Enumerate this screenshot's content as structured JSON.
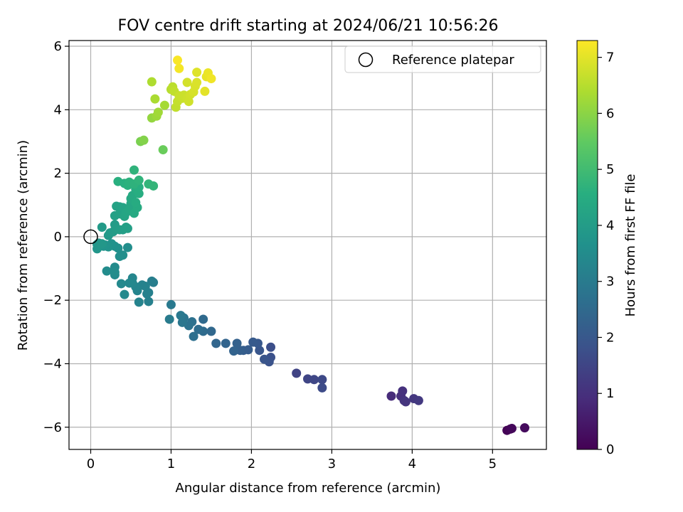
{
  "chart_data": {
    "type": "scatter",
    "title": "FOV centre drift starting at 2024/06/21 10:56:26",
    "xlabel": "Angular distance from reference (arcmin)",
    "ylabel": "Rotation from reference (arcmin)",
    "xlim": [
      -0.27,
      5.67
    ],
    "ylim": [
      -6.7,
      6.18
    ],
    "xticks": [
      0,
      1,
      2,
      3,
      4,
      5
    ],
    "yticks": [
      -6,
      -4,
      -2,
      0,
      2,
      4,
      6
    ],
    "grid": true,
    "legend": {
      "entries": [
        "Reference platepar"
      ],
      "placement": "top-right"
    },
    "colorbar": {
      "label": "Hours from first FF file",
      "colormap": "viridis",
      "range": [
        0,
        7.3
      ],
      "ticks": [
        0,
        1,
        2,
        3,
        4,
        5,
        6,
        7
      ]
    },
    "reference_point": {
      "x": 0,
      "y": 0
    },
    "series": [
      {
        "marker": "filled-circle",
        "points": [
          [
            5.18,
            -6.1,
            0.05
          ],
          [
            5.22,
            -6.06,
            0.1
          ],
          [
            5.24,
            -6.04,
            0.15
          ],
          [
            5.4,
            -6.02,
            0.2
          ],
          [
            3.74,
            -5.02,
            0.9
          ],
          [
            3.86,
            -5.02,
            0.95
          ],
          [
            3.88,
            -4.86,
            1.0
          ],
          [
            3.9,
            -5.16,
            1.05
          ],
          [
            3.92,
            -5.2,
            1.1
          ],
          [
            4.02,
            -5.1,
            1.15
          ],
          [
            4.08,
            -5.16,
            1.2
          ],
          [
            2.56,
            -4.3,
            1.45
          ],
          [
            2.7,
            -4.48,
            1.5
          ],
          [
            2.78,
            -4.5,
            1.55
          ],
          [
            2.88,
            -4.5,
            1.6
          ],
          [
            2.88,
            -4.76,
            1.65
          ],
          [
            2.24,
            -3.48,
            1.75
          ],
          [
            2.24,
            -3.8,
            1.8
          ],
          [
            2.22,
            -3.94,
            1.85
          ],
          [
            2.16,
            -3.86,
            1.9
          ],
          [
            2.1,
            -3.58,
            1.95
          ],
          [
            2.08,
            -3.36,
            2.0
          ],
          [
            2.02,
            -3.32,
            2.05
          ],
          [
            1.96,
            -3.56,
            2.1
          ],
          [
            1.9,
            -3.58,
            2.15
          ],
          [
            1.86,
            -3.58,
            2.2
          ],
          [
            1.82,
            -3.36,
            2.25
          ],
          [
            1.78,
            -3.6,
            2.3
          ],
          [
            1.68,
            -3.36,
            2.35
          ],
          [
            1.56,
            -3.36,
            2.4
          ],
          [
            1.5,
            -2.98,
            2.45
          ],
          [
            1.4,
            -2.6,
            2.5
          ],
          [
            1.4,
            -2.98,
            2.55
          ],
          [
            1.34,
            -2.92,
            2.6
          ],
          [
            1.28,
            -3.14,
            2.65
          ],
          [
            1.26,
            -2.68,
            2.7
          ],
          [
            1.22,
            -2.8,
            2.75
          ],
          [
            1.16,
            -2.56,
            2.8
          ],
          [
            1.14,
            -2.7,
            2.85
          ],
          [
            1.12,
            -2.48,
            2.9
          ],
          [
            1.0,
            -2.14,
            2.95
          ],
          [
            0.98,
            -2.6,
            3.0
          ],
          [
            0.78,
            -1.44,
            3.05
          ],
          [
            0.76,
            -1.4,
            3.1
          ],
          [
            0.72,
            -1.76,
            3.12
          ],
          [
            0.72,
            -2.04,
            3.15
          ],
          [
            0.7,
            -1.8,
            3.18
          ],
          [
            0.68,
            -1.56,
            3.2
          ],
          [
            0.64,
            -1.52,
            3.22
          ],
          [
            0.6,
            -2.06,
            3.25
          ],
          [
            0.58,
            -1.7,
            3.28
          ],
          [
            0.56,
            -1.58,
            3.3
          ],
          [
            0.52,
            -1.3,
            3.32
          ],
          [
            0.52,
            -1.46,
            3.35
          ],
          [
            0.48,
            -1.46,
            3.38
          ],
          [
            0.42,
            -1.82,
            3.4
          ],
          [
            0.38,
            -1.48,
            3.42
          ],
          [
            0.3,
            -1.2,
            3.45
          ],
          [
            0.3,
            -0.96,
            3.48
          ],
          [
            0.2,
            -1.08,
            3.5
          ],
          [
            0.3,
            -1.12,
            3.52
          ],
          [
            0.46,
            -0.34,
            3.55
          ],
          [
            0.4,
            -0.58,
            3.58
          ],
          [
            0.36,
            -0.62,
            3.6
          ],
          [
            0.34,
            -0.36,
            3.62
          ],
          [
            0.3,
            -0.3,
            3.65
          ],
          [
            0.26,
            -0.22,
            3.68
          ],
          [
            0.22,
            -0.32,
            3.7
          ],
          [
            0.18,
            -0.26,
            3.72
          ],
          [
            0.16,
            -0.3,
            3.75
          ],
          [
            0.1,
            -0.2,
            3.78
          ],
          [
            0.08,
            -0.38,
            3.8
          ],
          [
            0.08,
            -0.24,
            3.82
          ],
          [
            0.14,
            -0.22,
            3.85
          ],
          [
            0.22,
            0.04,
            3.88
          ],
          [
            0.24,
            0.12,
            3.9
          ],
          [
            0.14,
            0.3,
            3.92
          ],
          [
            0.28,
            0.16,
            3.95
          ],
          [
            0.3,
            0.38,
            3.98
          ],
          [
            0.32,
            0.26,
            4.0
          ],
          [
            0.36,
            0.22,
            4.02
          ],
          [
            0.4,
            0.22,
            4.05
          ],
          [
            0.44,
            0.3,
            4.08
          ],
          [
            0.46,
            0.26,
            4.1
          ],
          [
            0.3,
            0.66,
            4.12
          ],
          [
            0.36,
            0.72,
            4.15
          ],
          [
            0.32,
            0.96,
            4.18
          ],
          [
            0.36,
            0.94,
            4.2
          ],
          [
            0.4,
            0.92,
            4.22
          ],
          [
            0.42,
            0.64,
            4.25
          ],
          [
            0.44,
            0.76,
            4.28
          ],
          [
            0.48,
            0.86,
            4.3
          ],
          [
            0.5,
            1.04,
            4.32
          ],
          [
            0.52,
            1.14,
            4.35
          ],
          [
            0.5,
            1.2,
            4.38
          ],
          [
            0.52,
            1.3,
            4.4
          ],
          [
            0.54,
            0.74,
            4.42
          ],
          [
            0.58,
            0.92,
            4.45
          ],
          [
            0.56,
            1.08,
            4.48
          ],
          [
            0.56,
            1.5,
            4.5
          ],
          [
            0.6,
            1.36,
            4.52
          ],
          [
            0.6,
            1.56,
            4.55
          ],
          [
            0.34,
            1.74,
            4.58
          ],
          [
            0.42,
            1.68,
            4.6
          ],
          [
            0.46,
            1.62,
            4.62
          ],
          [
            0.48,
            1.72,
            4.65
          ],
          [
            0.54,
            1.66,
            4.68
          ],
          [
            0.54,
            2.1,
            4.7
          ],
          [
            0.6,
            1.78,
            4.72
          ],
          [
            0.72,
            1.66,
            4.75
          ],
          [
            0.78,
            1.6,
            4.78
          ],
          [
            0.9,
            2.74,
            5.6
          ],
          [
            0.62,
            3.0,
            5.8
          ],
          [
            0.66,
            3.04,
            5.9
          ],
          [
            0.76,
            3.74,
            6.1
          ],
          [
            0.82,
            3.8,
            6.2
          ],
          [
            0.84,
            3.92,
            6.25
          ],
          [
            0.92,
            4.14,
            6.3
          ],
          [
            0.8,
            4.34,
            6.35
          ],
          [
            0.76,
            4.88,
            6.4
          ],
          [
            1.0,
            4.64,
            6.5
          ],
          [
            1.02,
            4.72,
            6.55
          ],
          [
            1.04,
            4.58,
            6.6
          ],
          [
            1.06,
            4.08,
            6.62
          ],
          [
            1.08,
            4.26,
            6.65
          ],
          [
            1.1,
            4.44,
            6.68
          ],
          [
            1.14,
            4.36,
            6.7
          ],
          [
            1.16,
            4.46,
            6.72
          ],
          [
            1.2,
            4.36,
            6.75
          ],
          [
            1.22,
            4.26,
            6.78
          ],
          [
            1.24,
            4.48,
            6.8
          ],
          [
            1.2,
            4.86,
            6.82
          ],
          [
            1.28,
            4.56,
            6.85
          ],
          [
            1.3,
            4.74,
            6.88
          ],
          [
            1.32,
            4.86,
            6.9
          ],
          [
            1.32,
            5.18,
            6.95
          ],
          [
            1.42,
            4.58,
            7.0
          ],
          [
            1.44,
            5.04,
            7.05
          ],
          [
            1.46,
            5.16,
            7.1
          ],
          [
            1.5,
            4.98,
            7.15
          ],
          [
            1.1,
            5.3,
            7.2
          ],
          [
            1.08,
            5.56,
            7.25
          ]
        ]
      }
    ]
  }
}
